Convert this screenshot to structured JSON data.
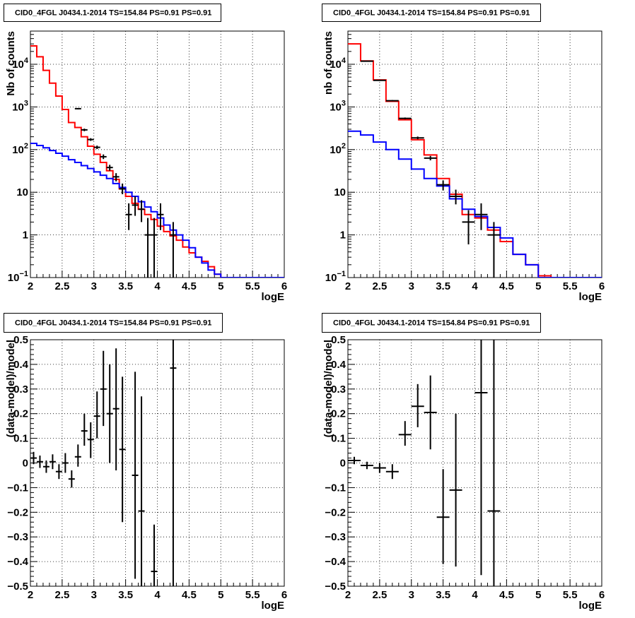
{
  "window": {
    "width": 898,
    "height": 875
  },
  "chart_data": [
    {
      "panel": "top-left",
      "type": "line",
      "title": "CID0_4FGL J0434.1-2014 TS=154.84 PS=0.91 PS=0.91",
      "xlabel": "logE",
      "ylabel": "Nb of counts",
      "xlim": [
        2,
        6
      ],
      "ylim": [
        0.1,
        60000
      ],
      "yscale": "log",
      "grid": true,
      "x_ticks": [
        "2",
        "2.5",
        "3",
        "3.5",
        "4",
        "4.5",
        "5",
        "5.5",
        "6"
      ],
      "y_ticks": [
        {
          "value": 0.1,
          "base": "10",
          "exp": "−1"
        },
        {
          "value": 1,
          "label": "1"
        },
        {
          "value": 10,
          "label": "10"
        },
        {
          "value": 100,
          "base": "10",
          "exp": "2"
        },
        {
          "value": 1000,
          "base": "10",
          "exp": "3"
        },
        {
          "value": 10000,
          "base": "10",
          "exp": "4"
        }
      ],
      "bin_edges": [
        2.0,
        2.1,
        2.2,
        2.3,
        2.4,
        2.5,
        2.6,
        2.7,
        2.8,
        2.9,
        3.0,
        3.1,
        3.2,
        3.3,
        3.4,
        3.5,
        3.6,
        3.7,
        3.8,
        3.9,
        4.0,
        4.1,
        4.2,
        4.3,
        4.4,
        4.5,
        4.6,
        4.7,
        4.8,
        4.9,
        5.0,
        5.1,
        5.2,
        5.3,
        5.4,
        5.5,
        5.6,
        5.7,
        5.8,
        5.9,
        6.0
      ],
      "series": [
        {
          "color": "#ff0000",
          "style": "step",
          "values": [
            27000,
            15000,
            7200,
            3600,
            1800,
            870,
            430,
            330,
            200,
            120,
            78,
            50,
            32,
            20,
            12,
            8,
            5.5,
            4,
            3,
            2.3,
            1.6,
            1.2,
            0.95,
            0.75,
            0.52,
            0.38,
            0.3,
            0.24,
            0.18,
            0.12,
            0.1,
            0.1,
            0.1,
            0.1,
            0.1,
            0.1,
            0.1,
            0.1,
            0.1,
            0.1
          ]
        },
        {
          "color": "#0000ff",
          "style": "step",
          "values": [
            140,
            125,
            110,
            95,
            82,
            70,
            58,
            50,
            42,
            36,
            30,
            25,
            21,
            16,
            13,
            10,
            8,
            6,
            4.5,
            3.5,
            2.5,
            1.7,
            1.3,
            1.0,
            0.75,
            0.5,
            0.3,
            0.22,
            0.15,
            0.12,
            0.1,
            0.1,
            0.1,
            0.1,
            0.1,
            0.1,
            0.1,
            0.1,
            0.1,
            0.1
          ]
        }
      ],
      "points": [
        {
          "x": 2.75,
          "y": 910,
          "xerr": 0.05,
          "lo": 880,
          "hi": 940
        },
        {
          "x": 2.85,
          "y": 290,
          "xerr": 0.05,
          "lo": 270,
          "hi": 310
        },
        {
          "x": 2.95,
          "y": 172,
          "xerr": 0.05,
          "lo": 160,
          "hi": 185
        },
        {
          "x": 3.05,
          "y": 113,
          "xerr": 0.05,
          "lo": 103,
          "hi": 124
        },
        {
          "x": 3.15,
          "y": 68,
          "xerr": 0.05,
          "lo": 60,
          "hi": 77
        },
        {
          "x": 3.25,
          "y": 38,
          "xerr": 0.05,
          "lo": 32,
          "hi": 44
        },
        {
          "x": 3.35,
          "y": 23,
          "xerr": 0.05,
          "lo": 18,
          "hi": 28
        },
        {
          "x": 3.45,
          "y": 12,
          "xerr": 0.05,
          "lo": 9,
          "hi": 16
        },
        {
          "x": 3.55,
          "y": 3,
          "xerr": 0.05,
          "lo": 1.3,
          "hi": 5.5
        },
        {
          "x": 3.65,
          "y": 5,
          "xerr": 0.05,
          "lo": 2.8,
          "hi": 8
        },
        {
          "x": 3.75,
          "y": 4,
          "xerr": 0.05,
          "lo": 2,
          "hi": 6.5
        },
        {
          "x": 3.85,
          "y": 1,
          "xerr": 0.05,
          "lo": 0.1,
          "hi": 2.5
        },
        {
          "x": 3.95,
          "y": 1,
          "xerr": 0.05,
          "lo": 0.1,
          "hi": 2.5
        },
        {
          "x": 4.05,
          "y": 3,
          "xerr": 0.05,
          "lo": 1.3,
          "hi": 5.5
        },
        {
          "x": 4.25,
          "y": 1,
          "xerr": 0.05,
          "lo": 0.1,
          "hi": 2
        }
      ]
    },
    {
      "panel": "top-right",
      "type": "line",
      "title": "CID0_4FGL J0434.1-2014 TS=154.84 PS=0.91 PS=0.91",
      "xlabel": "logE",
      "ylabel": "nb of counts",
      "xlim": [
        2,
        6
      ],
      "ylim": [
        0.1,
        60000
      ],
      "yscale": "log",
      "grid": true,
      "x_ticks": [
        "2",
        "2.5",
        "3",
        "3.5",
        "4",
        "4.5",
        "5",
        "5.5",
        "6"
      ],
      "y_ticks": [
        {
          "value": 0.1,
          "base": "10",
          "exp": "−1"
        },
        {
          "value": 1,
          "label": "1"
        },
        {
          "value": 10,
          "label": "10"
        },
        {
          "value": 100,
          "base": "10",
          "exp": "2"
        },
        {
          "value": 1000,
          "base": "10",
          "exp": "3"
        },
        {
          "value": 10000,
          "base": "10",
          "exp": "4"
        }
      ],
      "bin_edges": [
        2.0,
        2.2,
        2.4,
        2.6,
        2.8,
        3.0,
        3.2,
        3.4,
        3.6,
        3.8,
        4.0,
        4.2,
        4.4,
        4.6,
        4.8,
        5.0,
        5.2,
        5.4,
        5.6,
        5.8,
        6.0
      ],
      "series": [
        {
          "color": "#ff0000",
          "style": "step",
          "values": [
            30000,
            12000,
            4300,
            1350,
            500,
            170,
            75,
            21,
            9,
            3,
            2.5,
            1.3,
            0.7,
            0.35,
            0.2,
            0.11,
            0.1,
            0.1,
            0.1,
            0.1
          ]
        },
        {
          "color": "#0000ff",
          "style": "step",
          "values": [
            270,
            220,
            150,
            100,
            60,
            35,
            21,
            14,
            7,
            4,
            2.7,
            1.5,
            0.85,
            0.35,
            0.2,
            0.1,
            0.1,
            0.1,
            0.1,
            0.1
          ]
        }
      ],
      "points": [
        {
          "x": 2.3,
          "y": 11800,
          "xerr": 0.1,
          "lo": 11600,
          "hi": 12000
        },
        {
          "x": 2.5,
          "y": 4200,
          "xerr": 0.1,
          "lo": 4100,
          "hi": 4300
        },
        {
          "x": 2.7,
          "y": 1400,
          "xerr": 0.1,
          "lo": 1350,
          "hi": 1450
        },
        {
          "x": 2.9,
          "y": 540,
          "xerr": 0.1,
          "lo": 515,
          "hi": 565
        },
        {
          "x": 3.1,
          "y": 188,
          "xerr": 0.1,
          "lo": 175,
          "hi": 202
        },
        {
          "x": 3.3,
          "y": 63,
          "xerr": 0.1,
          "lo": 56,
          "hi": 71
        },
        {
          "x": 3.5,
          "y": 15,
          "xerr": 0.1,
          "lo": 11,
          "hi": 19
        },
        {
          "x": 3.7,
          "y": 8,
          "xerr": 0.1,
          "lo": 5.2,
          "hi": 11.5
        },
        {
          "x": 3.9,
          "y": 2,
          "xerr": 0.1,
          "lo": 0.6,
          "hi": 3.8
        },
        {
          "x": 4.1,
          "y": 3,
          "xerr": 0.1,
          "lo": 1.3,
          "hi": 5.5
        },
        {
          "x": 4.3,
          "y": 1,
          "xerr": 0.1,
          "lo": 0.1,
          "hi": 2
        }
      ]
    },
    {
      "panel": "bottom-left",
      "type": "scatter",
      "title": "CID0_4FGL J0434.1-2014 TS=154.84 PS=0.91 PS=0.91",
      "xlabel": "logE",
      "ylabel": "(data-model)/model",
      "xlim": [
        2,
        6
      ],
      "ylim": [
        -0.5,
        0.5
      ],
      "yscale": "linear",
      "grid": true,
      "x_ticks": [
        "2",
        "2.5",
        "3",
        "3.5",
        "4",
        "4.5",
        "5",
        "5.5",
        "6"
      ],
      "y_ticks": [
        {
          "value": -0.5,
          "label": "−0.5"
        },
        {
          "value": -0.4,
          "label": "−0.4"
        },
        {
          "value": -0.3,
          "label": "−0.3"
        },
        {
          "value": -0.2,
          "label": "−0.2"
        },
        {
          "value": -0.1,
          "label": "−0.1"
        },
        {
          "value": 0,
          "label": "0"
        },
        {
          "value": 0.1,
          "label": "0.1"
        },
        {
          "value": 0.2,
          "label": "0.2"
        },
        {
          "value": 0.3,
          "label": "0.3"
        },
        {
          "value": 0.4,
          "label": "0.4"
        },
        {
          "value": 0.5,
          "label": "0.5"
        }
      ],
      "series": [],
      "points": [
        {
          "x": 2.05,
          "y": 0.02,
          "xerr": 0.05,
          "lo": -0.005,
          "hi": 0.045
        },
        {
          "x": 2.15,
          "y": 0.005,
          "xerr": 0.05,
          "lo": -0.02,
          "hi": 0.03
        },
        {
          "x": 2.25,
          "y": -0.015,
          "xerr": 0.05,
          "lo": -0.04,
          "hi": 0.01
        },
        {
          "x": 2.35,
          "y": 0.005,
          "xerr": 0.05,
          "lo": -0.025,
          "hi": 0.035
        },
        {
          "x": 2.45,
          "y": -0.035,
          "xerr": 0.05,
          "lo": -0.065,
          "hi": -0.005
        },
        {
          "x": 2.55,
          "y": 0.0,
          "xerr": 0.05,
          "lo": -0.04,
          "hi": 0.04
        },
        {
          "x": 2.65,
          "y": -0.065,
          "xerr": 0.05,
          "lo": -0.1,
          "hi": -0.03
        },
        {
          "x": 2.75,
          "y": 0.025,
          "xerr": 0.05,
          "lo": -0.015,
          "hi": 0.075
        },
        {
          "x": 2.85,
          "y": 0.13,
          "xerr": 0.05,
          "lo": 0.07,
          "hi": 0.2
        },
        {
          "x": 2.95,
          "y": 0.095,
          "xerr": 0.05,
          "lo": 0.02,
          "hi": 0.165
        },
        {
          "x": 3.05,
          "y": 0.19,
          "xerr": 0.05,
          "lo": 0.1,
          "hi": 0.29
        },
        {
          "x": 3.15,
          "y": 0.3,
          "xerr": 0.05,
          "lo": 0.15,
          "hi": 0.455
        },
        {
          "x": 3.25,
          "y": 0.2,
          "xerr": 0.05,
          "lo": 0.0,
          "hi": 0.4
        },
        {
          "x": 3.35,
          "y": 0.22,
          "xerr": 0.05,
          "lo": -0.03,
          "hi": 0.465
        },
        {
          "x": 3.45,
          "y": 0.055,
          "xerr": 0.05,
          "lo": -0.24,
          "hi": 0.35
        },
        {
          "x": 3.65,
          "y": -0.05,
          "xerr": 0.05,
          "lo": -0.47,
          "hi": 0.37
        },
        {
          "x": 3.75,
          "y": -0.195,
          "xerr": 0.05,
          "lo": -0.5,
          "hi": 0.27
        },
        {
          "x": 3.95,
          "y": -0.44,
          "xerr": 0.05,
          "lo": -0.5,
          "hi": -0.25
        },
        {
          "x": 4.25,
          "y": 0.385,
          "xerr": 0.05,
          "lo": -0.5,
          "hi": 0.5
        }
      ]
    },
    {
      "panel": "bottom-right",
      "type": "scatter",
      "title": "CID0_4FGL J0434.1-2014 TS=154.84 PS=0.91 PS=0.91",
      "xlabel": "logE",
      "ylabel": "(data-model)/model",
      "xlim": [
        2,
        6
      ],
      "ylim": [
        -0.5,
        0.5
      ],
      "yscale": "linear",
      "grid": true,
      "x_ticks": [
        "2",
        "2.5",
        "3",
        "3.5",
        "4",
        "4.5",
        "5",
        "5.5",
        "6"
      ],
      "y_ticks": [
        {
          "value": -0.5,
          "label": "−0.5"
        },
        {
          "value": -0.4,
          "label": "−0.4"
        },
        {
          "value": -0.3,
          "label": "−0.3"
        },
        {
          "value": -0.2,
          "label": "−0.2"
        },
        {
          "value": -0.1,
          "label": "−0.1"
        },
        {
          "value": 0,
          "label": "0"
        },
        {
          "value": 0.1,
          "label": "0.1"
        },
        {
          "value": 0.2,
          "label": "0.2"
        },
        {
          "value": 0.3,
          "label": "0.3"
        },
        {
          "value": 0.4,
          "label": "0.4"
        },
        {
          "value": 0.5,
          "label": "0.5"
        }
      ],
      "series": [],
      "points": [
        {
          "x": 2.1,
          "y": 0.01,
          "xerr": 0.1,
          "lo": -0.005,
          "hi": 0.025
        },
        {
          "x": 2.3,
          "y": -0.01,
          "xerr": 0.1,
          "lo": -0.025,
          "hi": 0.005
        },
        {
          "x": 2.5,
          "y": -0.02,
          "xerr": 0.1,
          "lo": -0.04,
          "hi": 0.0
        },
        {
          "x": 2.7,
          "y": -0.035,
          "xerr": 0.1,
          "lo": -0.065,
          "hi": -0.005
        },
        {
          "x": 2.9,
          "y": 0.115,
          "xerr": 0.1,
          "lo": 0.07,
          "hi": 0.17
        },
        {
          "x": 3.1,
          "y": 0.23,
          "xerr": 0.1,
          "lo": 0.145,
          "hi": 0.32
        },
        {
          "x": 3.3,
          "y": 0.205,
          "xerr": 0.1,
          "lo": 0.055,
          "hi": 0.355
        },
        {
          "x": 3.5,
          "y": -0.22,
          "xerr": 0.1,
          "lo": -0.41,
          "hi": -0.025
        },
        {
          "x": 3.7,
          "y": -0.11,
          "xerr": 0.1,
          "lo": -0.42,
          "hi": 0.2
        },
        {
          "x": 4.1,
          "y": 0.285,
          "xerr": 0.1,
          "lo": -0.455,
          "hi": 0.5
        },
        {
          "x": 4.3,
          "y": -0.195,
          "xerr": 0.1,
          "lo": -0.5,
          "hi": 0.5
        }
      ]
    }
  ]
}
